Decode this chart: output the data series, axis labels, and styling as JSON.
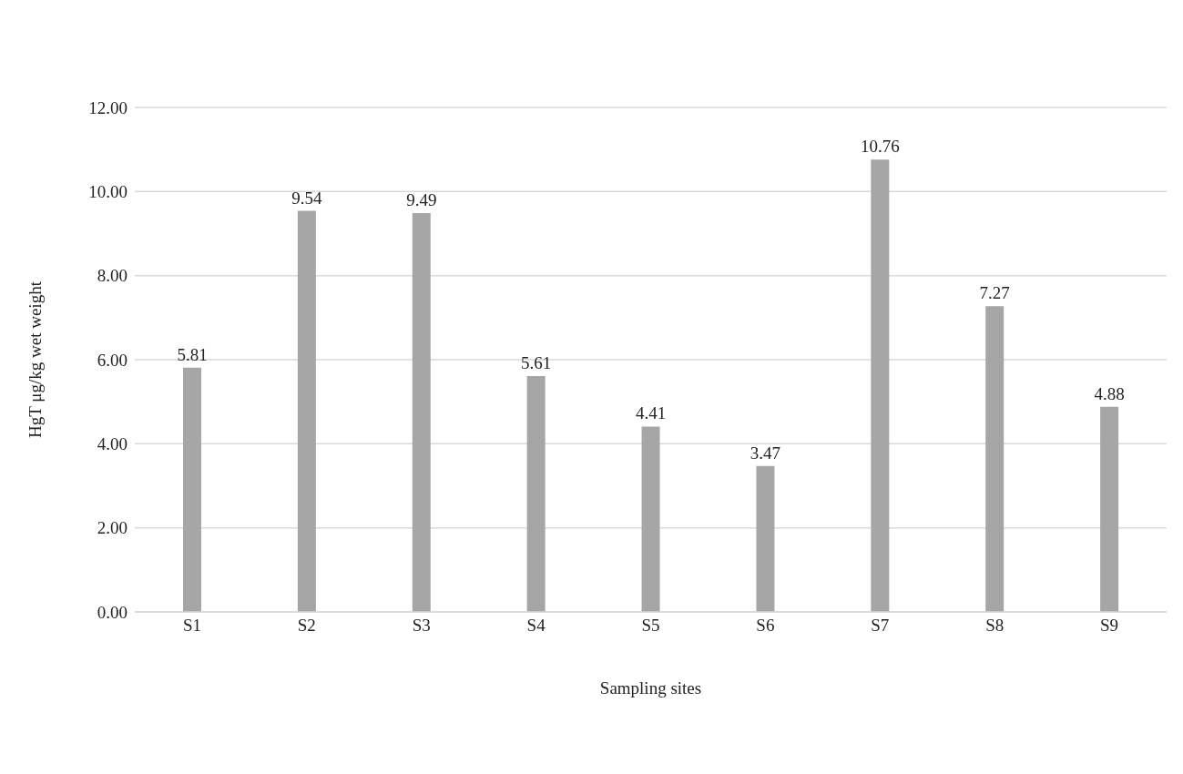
{
  "chart_data": {
    "type": "bar",
    "xlabel": "Sampling sites",
    "ylabel": "HgT μg/kg wet weight",
    "categories": [
      "S1",
      "S2",
      "S3",
      "S4",
      "S5",
      "S6",
      "S7",
      "S8",
      "S9"
    ],
    "values": [
      5.81,
      9.54,
      9.49,
      5.61,
      4.41,
      3.47,
      10.76,
      7.27,
      4.88
    ],
    "color": "#a6a6a6",
    "ylim": [
      0,
      12
    ],
    "yticks": [
      {
        "value": 0,
        "label": "0.00"
      },
      {
        "value": 2,
        "label": "2.00"
      },
      {
        "value": 4,
        "label": "4.00"
      },
      {
        "value": 6,
        "label": "6.00"
      },
      {
        "value": 8,
        "label": "8.00"
      },
      {
        "value": 10,
        "label": "10.00"
      },
      {
        "value": 12,
        "label": "12.00"
      }
    ],
    "grid": "y",
    "data_labels": true,
    "legend": false
  }
}
